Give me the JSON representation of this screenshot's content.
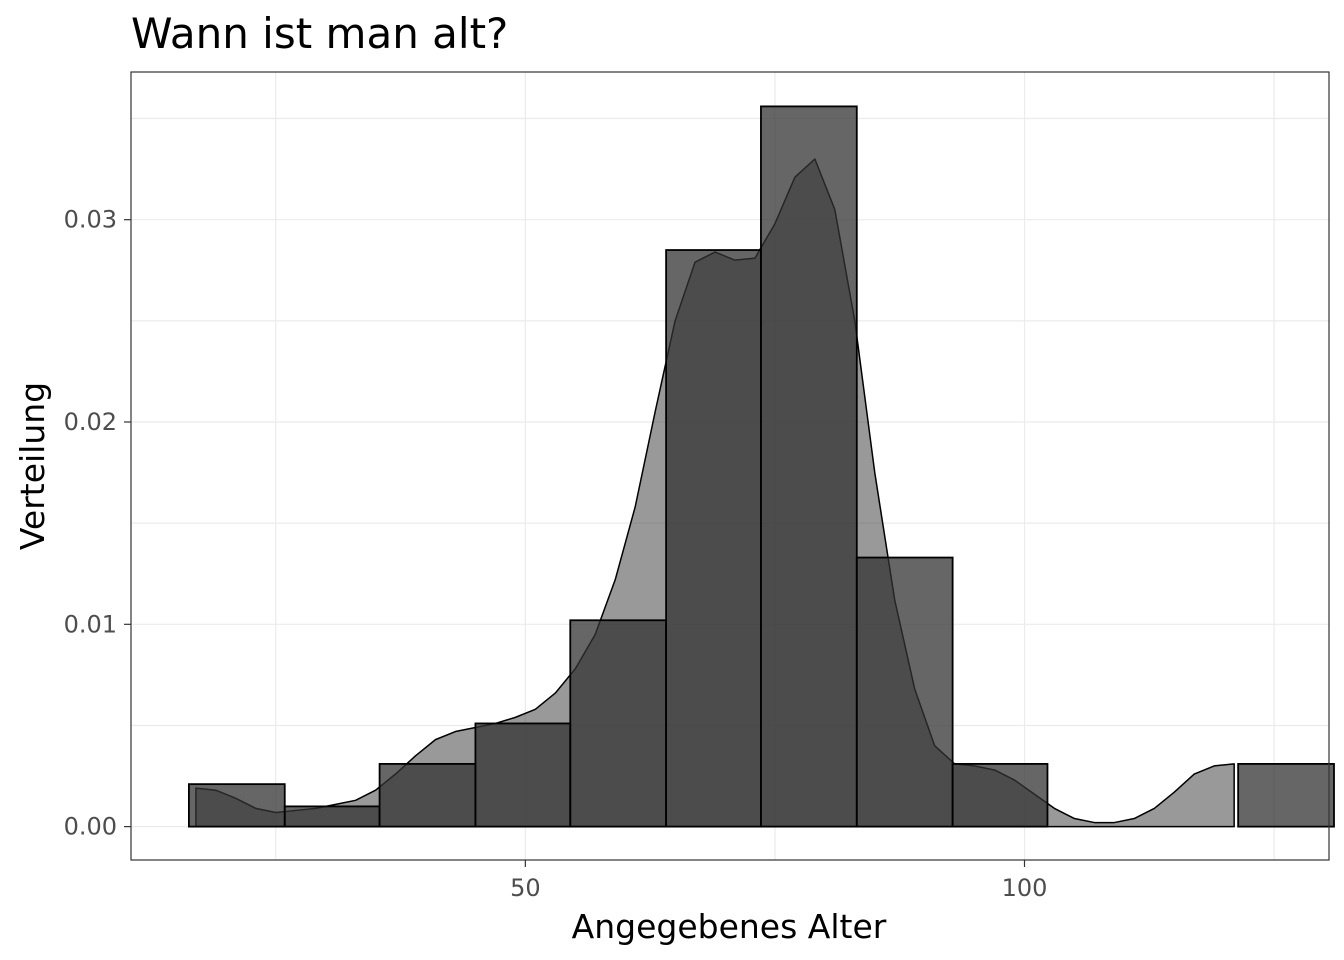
{
  "chart_data": {
    "type": "bar",
    "title": "Wann ist man alt?",
    "xlabel": "Angegebenes Alter",
    "ylabel": "Verteilung",
    "xlim": [
      10.5,
      130.5
    ],
    "ylim": [
      -0.00165,
      0.0373
    ],
    "x_ticks": [
      50,
      100
    ],
    "x_tick_labels": [
      "50",
      "100"
    ],
    "y_ticks": [
      0,
      0.01,
      0.02,
      0.03
    ],
    "y_tick_labels": [
      "0.00",
      "0.01",
      "0.02",
      "0.03"
    ],
    "grid": true,
    "legend": "none",
    "bins": [
      {
        "x0": 16.3,
        "x1": 25.9,
        "value": 0.0021
      },
      {
        "x0": 25.9,
        "x1": 35.4,
        "value": 0.001
      },
      {
        "x0": 35.4,
        "x1": 45.0,
        "value": 0.0031
      },
      {
        "x0": 45.0,
        "x1": 54.5,
        "value": 0.0051
      },
      {
        "x0": 54.5,
        "x1": 64.1,
        "value": 0.0102
      },
      {
        "x0": 64.1,
        "x1": 73.6,
        "value": 0.0285
      },
      {
        "x0": 73.6,
        "x1": 83.2,
        "value": 0.0356
      },
      {
        "x0": 83.2,
        "x1": 92.8,
        "value": 0.0133
      },
      {
        "x0": 92.8,
        "x1": 102.3,
        "value": 0.0031
      },
      {
        "x0": 102.3,
        "x1": 111.9,
        "value": 0
      },
      {
        "x0": 111.9,
        "x1": 121.4,
        "value": 0
      },
      {
        "x0": 121.4,
        "x1": 131.0,
        "value": 0.0031
      }
    ],
    "density": {
      "x": [
        17,
        19,
        21,
        23,
        25,
        27,
        29,
        31,
        33,
        35,
        37,
        39,
        41,
        43,
        45,
        47,
        49,
        51,
        53,
        55,
        57,
        59,
        61,
        63,
        65,
        67,
        69,
        71,
        73,
        75,
        77,
        79,
        81,
        83,
        85,
        87,
        89,
        91,
        93,
        95,
        97,
        99,
        101,
        103,
        105,
        107,
        109,
        111,
        113,
        115,
        117,
        119,
        121
      ],
      "y": [
        0.0019,
        0.0018,
        0.0014,
        0.0009,
        0.0007,
        0.0008,
        0.0009,
        0.0011,
        0.0013,
        0.0018,
        0.0026,
        0.0035,
        0.0043,
        0.0047,
        0.0049,
        0.0051,
        0.0054,
        0.0058,
        0.0066,
        0.0078,
        0.0095,
        0.0122,
        0.0158,
        0.0205,
        0.025,
        0.0279,
        0.0284,
        0.028,
        0.0281,
        0.0298,
        0.0321,
        0.033,
        0.0305,
        0.025,
        0.0175,
        0.0112,
        0.0068,
        0.004,
        0.0031,
        0.003,
        0.0028,
        0.0023,
        0.0016,
        0.0009,
        0.0004,
        0.0002,
        0.0002,
        0.0004,
        0.0009,
        0.0017,
        0.0026,
        0.003,
        0.0031
      ]
    },
    "colors": {
      "bar_fill": "#333333",
      "bar_opacity": 0.75,
      "density_fill": "#333333",
      "density_opacity": 0.5,
      "outline": "#000000",
      "grid": "#ebebeb",
      "panel_border": "#333333"
    }
  }
}
